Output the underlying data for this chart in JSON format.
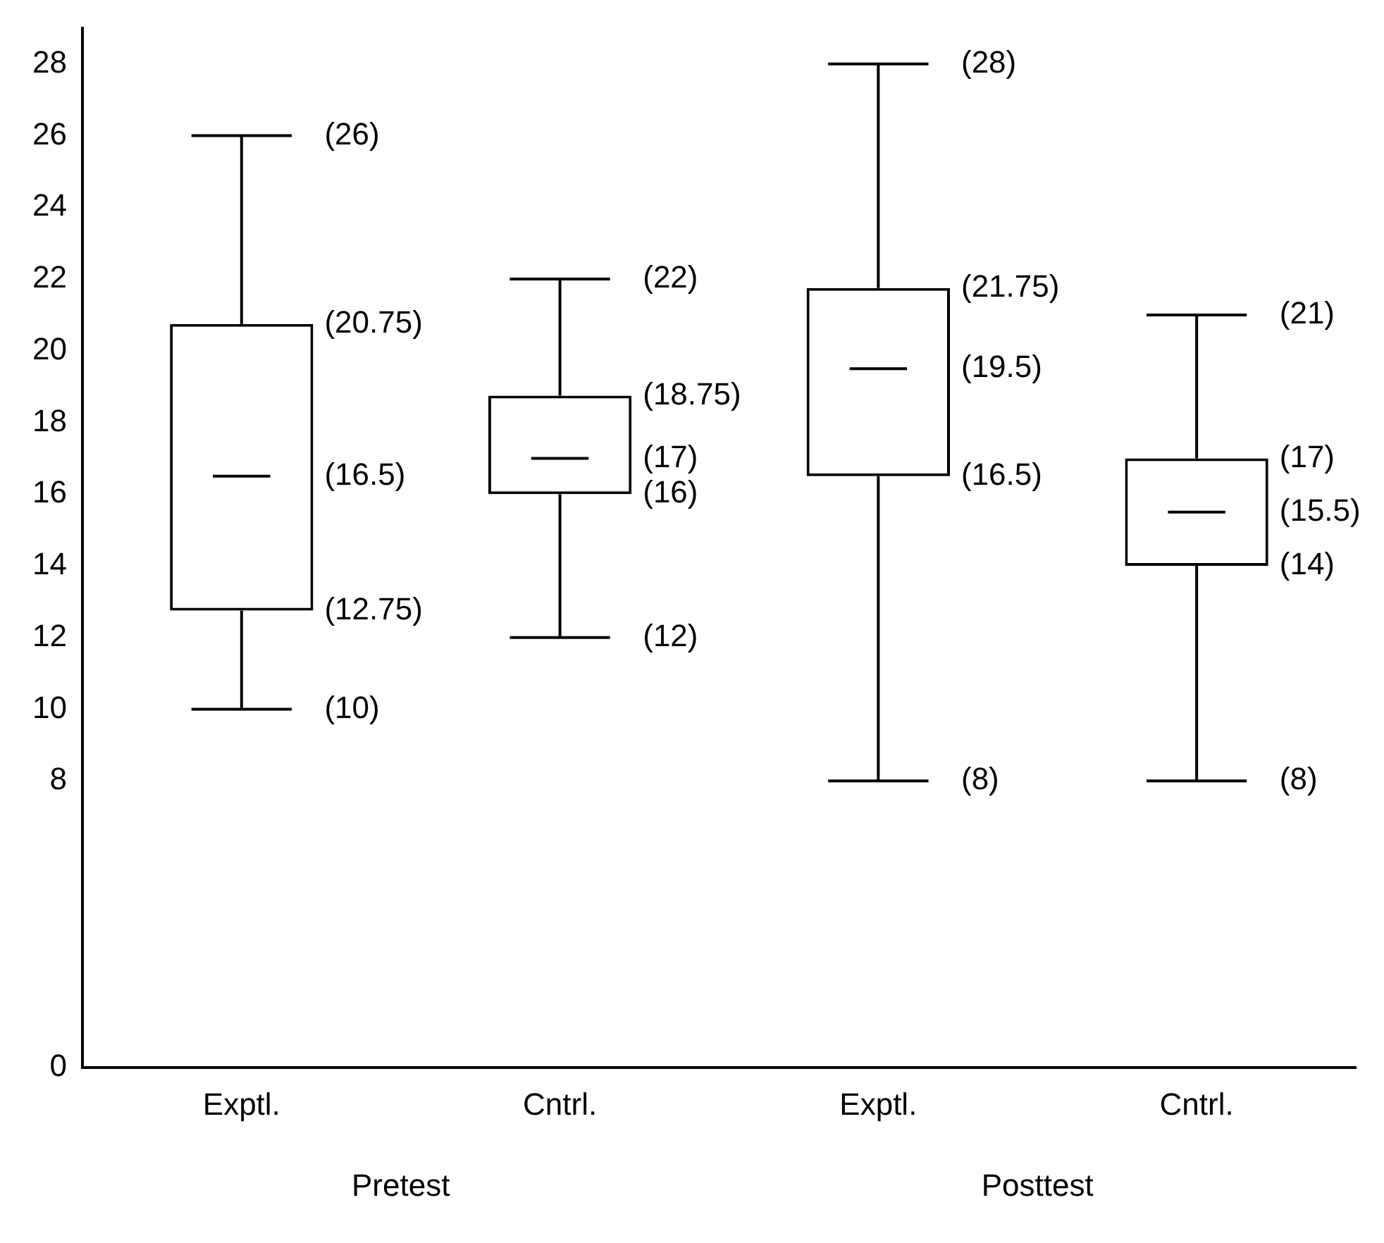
{
  "chart_data": {
    "type": "box",
    "categories": [
      "Exptl.",
      "Cntrl.",
      "Exptl.",
      "Cntrl."
    ],
    "series": [
      {
        "color": "#000000",
        "boxes": [
          {
            "low": 10,
            "q1": 12.75,
            "median": 16.5,
            "q3": 20.75,
            "high": 26
          },
          {
            "low": 12,
            "q1": 16,
            "median": 17,
            "q3": 18.75,
            "high": 22
          },
          {
            "low": 8,
            "q1": 16.5,
            "median": 19.5,
            "q3": 21.75,
            "high": 28
          },
          {
            "low": 8,
            "q1": 14,
            "median": 15.5,
            "q3": 17,
            "high": 21
          }
        ],
        "value_labels": [
          [
            "(26)",
            "(20.75)",
            "(16.5)",
            "(12.75)",
            "(10)"
          ],
          [
            "(22)",
            "(18.75)",
            "(17)",
            "(16)",
            "(12)"
          ],
          [
            "(28)",
            "(21.75)",
            "(19.5)",
            "(16.5)",
            "(8)"
          ],
          [
            "(21)",
            "(17)",
            "(15.5)",
            "(14)",
            "(8)"
          ]
        ]
      }
    ],
    "ylim": [
      0,
      29
    ],
    "yticks": [
      0,
      8,
      10,
      12,
      14,
      16,
      18,
      20,
      22,
      24,
      26,
      28
    ],
    "annotations": [
      "Pretest",
      "Posttest"
    ],
    "grid": false,
    "legend": false
  }
}
